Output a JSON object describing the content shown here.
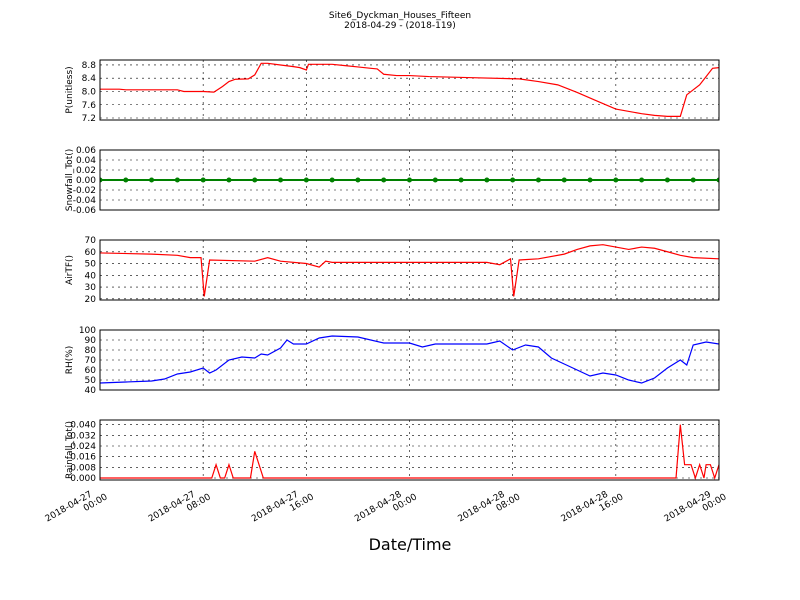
{
  "chart_data": [
    {
      "type": "line",
      "title": "Site6_Dyckman_Houses_Fifteen",
      "subtitle": "2018-04-29 - (2018-119)",
      "ylabel": "P(unitless)",
      "color": "#ff0000",
      "ylim": [
        7.14,
        8.95
      ],
      "yticks": [
        7.2,
        7.6,
        {
          "value": 8,
          "label": "8.0"
        },
        8.4,
        8.8
      ],
      "x": [
        "2018-04-27 00:00",
        "2018-04-27 01:30",
        "2018-04-27 02:00",
        "2018-04-27 06:00",
        "2018-04-27 06:30",
        "2018-04-27 08:00",
        "2018-04-27 08:50",
        "2018-04-27 09:30",
        "2018-04-27 10:00",
        "2018-04-27 10:30",
        "2018-04-27 11:30",
        "2018-04-27 12:00",
        "2018-04-27 12:30",
        "2018-04-27 13:00",
        "2018-04-27 14:00",
        "2018-04-27 15:00",
        "2018-04-27 15:30",
        "2018-04-27 16:00",
        "2018-04-27 16:10",
        "2018-04-27 18:00",
        "2018-04-27 19:00",
        "2018-04-27 20:00",
        "2018-04-27 21:00",
        "2018-04-27 21:30",
        "2018-04-27 22:00",
        "2018-04-27 23:00",
        "2018-04-28 00:00",
        "2018-04-28 01:30",
        "2018-04-28 04:30",
        "2018-04-28 08:30",
        "2018-04-28 10:00",
        "2018-04-28 11:30",
        "2018-04-28 13:00",
        "2018-04-28 14:30",
        "2018-04-28 16:00",
        "2018-04-28 18:00",
        "2018-04-28 19:00",
        "2018-04-28 20:00",
        "2018-04-28 21:00",
        "2018-04-28 21:30",
        "2018-04-28 22:30",
        "2018-04-28 23:00",
        "2018-04-28 23:30",
        "2018-04-29 00:00"
      ],
      "values": [
        8.07,
        8.07,
        8.05,
        8.05,
        8.0,
        8.0,
        7.98,
        8.15,
        8.3,
        8.37,
        8.38,
        8.5,
        8.85,
        8.85,
        8.8,
        8.75,
        8.72,
        8.65,
        8.82,
        8.82,
        8.78,
        8.74,
        8.7,
        8.68,
        8.52,
        8.48,
        8.48,
        8.45,
        8.42,
        8.38,
        8.3,
        8.2,
        7.97,
        7.72,
        7.47,
        7.33,
        7.28,
        7.25,
        7.25,
        7.9,
        8.2,
        8.45,
        8.7,
        8.72
      ]
    },
    {
      "type": "line",
      "ylabel": "Snowfall_Tot()",
      "color": "#008000",
      "marker": "o",
      "ylim": [
        -0.06,
        0.06
      ],
      "yticks": [
        -0.06,
        -0.04,
        -0.02,
        {
          "value": 0,
          "label": "0.00"
        },
        0.02,
        0.04,
        0.06
      ],
      "x": [
        "2018-04-27 00:00",
        "2018-04-27 02:00",
        "2018-04-27 04:00",
        "2018-04-27 06:00",
        "2018-04-27 08:00",
        "2018-04-27 10:00",
        "2018-04-27 12:00",
        "2018-04-27 14:00",
        "2018-04-27 16:00",
        "2018-04-27 18:00",
        "2018-04-27 20:00",
        "2018-04-27 22:00",
        "2018-04-28 00:00",
        "2018-04-28 02:00",
        "2018-04-28 04:00",
        "2018-04-28 06:00",
        "2018-04-28 08:00",
        "2018-04-28 10:00",
        "2018-04-28 12:00",
        "2018-04-28 14:00",
        "2018-04-28 16:00",
        "2018-04-28 18:00",
        "2018-04-28 20:00",
        "2018-04-28 22:00",
        "2018-04-29 00:00"
      ],
      "values": [
        0,
        0,
        0,
        0,
        0,
        0,
        0,
        0,
        0,
        0,
        0,
        0,
        0,
        0,
        0,
        0,
        0,
        0,
        0,
        0,
        0,
        0,
        0,
        0,
        0
      ]
    },
    {
      "type": "line",
      "ylabel": "AirTF()",
      "color": "#ff0000",
      "ylim": [
        19,
        70
      ],
      "yticks": [
        20,
        30,
        40,
        50,
        60,
        70
      ],
      "x": [
        "2018-04-27 00:00",
        "2018-04-27 04:00",
        "2018-04-27 06:00",
        "2018-04-27 07:00",
        "2018-04-27 07:50",
        "2018-04-27 08:05",
        "2018-04-27 08:30",
        "2018-04-27 12:00",
        "2018-04-27 13:00",
        "2018-04-27 14:00",
        "2018-04-27 16:00",
        "2018-04-27 17:00",
        "2018-04-27 17:30",
        "2018-04-27 18:00",
        "2018-04-28 06:00",
        "2018-04-28 07:00",
        "2018-04-28 07:50",
        "2018-04-28 08:05",
        "2018-04-28 08:30",
        "2018-04-28 10:00",
        "2018-04-28 12:00",
        "2018-04-28 13:00",
        "2018-04-28 14:00",
        "2018-04-28 15:00",
        "2018-04-28 16:00",
        "2018-04-28 17:00",
        "2018-04-28 18:00",
        "2018-04-28 19:00",
        "2018-04-28 20:00",
        "2018-04-28 21:00",
        "2018-04-28 22:00",
        "2018-04-29 00:00"
      ],
      "values": [
        59,
        58,
        57,
        55,
        55,
        22,
        53,
        52,
        55,
        52,
        50,
        47,
        52,
        51,
        51,
        49,
        54,
        22,
        53,
        54,
        58,
        62,
        65,
        66,
        64,
        62,
        64,
        63,
        60,
        57,
        55,
        54
      ]
    },
    {
      "type": "line",
      "ylabel": "RH(%)",
      "color": "#0000ff",
      "ylim": [
        40,
        100
      ],
      "yticks": [
        40,
        50,
        60,
        70,
        80,
        90,
        100
      ],
      "x": [
        "2018-04-27 00:00",
        "2018-04-27 02:00",
        "2018-04-27 04:00",
        "2018-04-27 05:00",
        "2018-04-27 06:00",
        "2018-04-27 07:00",
        "2018-04-27 08:00",
        "2018-04-27 08:30",
        "2018-04-27 09:00",
        "2018-04-27 10:00",
        "2018-04-27 11:00",
        "2018-04-27 12:00",
        "2018-04-27 12:30",
        "2018-04-27 13:00",
        "2018-04-27 14:00",
        "2018-04-27 14:30",
        "2018-04-27 15:00",
        "2018-04-27 16:00",
        "2018-04-27 17:00",
        "2018-04-27 18:00",
        "2018-04-27 20:00",
        "2018-04-27 22:00",
        "2018-04-28 00:00",
        "2018-04-28 01:00",
        "2018-04-28 02:00",
        "2018-04-28 04:00",
        "2018-04-28 06:00",
        "2018-04-28 07:00",
        "2018-04-28 08:00",
        "2018-04-28 09:00",
        "2018-04-28 10:00",
        "2018-04-28 11:00",
        "2018-04-28 12:00",
        "2018-04-28 13:00",
        "2018-04-28 14:00",
        "2018-04-28 15:00",
        "2018-04-28 16:00",
        "2018-04-28 17:00",
        "2018-04-28 18:00",
        "2018-04-28 19:00",
        "2018-04-28 20:00",
        "2018-04-28 21:00",
        "2018-04-28 21:30",
        "2018-04-28 22:00",
        "2018-04-28 23:00",
        "2018-04-29 00:00"
      ],
      "values": [
        47,
        48,
        49,
        51,
        56,
        58,
        62,
        57,
        60,
        70,
        73,
        72,
        76,
        75,
        82,
        90,
        86,
        86,
        92,
        94,
        93,
        87,
        87,
        83,
        86,
        86,
        86,
        89,
        80,
        85,
        83,
        72,
        66,
        60,
        54,
        57,
        55,
        50,
        47,
        52,
        62,
        70,
        65,
        85,
        88,
        86
      ]
    },
    {
      "type": "line",
      "ylabel": "Rainfall_Tot()",
      "xlabel": "Date/Time",
      "color": "#ff0000",
      "ylim": [
        -0.0015,
        0.0435
      ],
      "yticks": [
        {
          "value": 0,
          "label": "0.000"
        },
        0.008,
        0.016,
        0.024,
        0.032,
        {
          "value": 0.04,
          "label": "0.040"
        }
      ],
      "xlim": [
        "2018-04-27 00:00",
        "2018-04-29 00:00"
      ],
      "xticks": [
        {
          "value": "2018-04-27 00:00",
          "label": "2018-04-27\n00:00"
        },
        {
          "value": "2018-04-27 08:00",
          "label": "2018-04-27\n08:00"
        },
        {
          "value": "2018-04-27 16:00",
          "label": "2018-04-27\n16:00"
        },
        {
          "value": "2018-04-28 00:00",
          "label": "2018-04-28\n00:00"
        },
        {
          "value": "2018-04-28 08:00",
          "label": "2018-04-28\n08:00"
        },
        {
          "value": "2018-04-28 16:00",
          "label": "2018-04-28\n16:00"
        },
        {
          "value": "2018-04-29 00:00",
          "label": "2018-04-29\n00:00"
        }
      ],
      "x": [
        "2018-04-27 00:00",
        "2018-04-27 08:40",
        "2018-04-27 09:00",
        "2018-04-27 09:20",
        "2018-04-27 09:40",
        "2018-04-27 10:00",
        "2018-04-27 10:20",
        "2018-04-27 11:40",
        "2018-04-27 12:00",
        "2018-04-27 12:40",
        "2018-04-28 20:40",
        "2018-04-28 21:00",
        "2018-04-28 21:20",
        "2018-04-28 21:50",
        "2018-04-28 22:10",
        "2018-04-28 22:30",
        "2018-04-28 22:50",
        "2018-04-28 23:00",
        "2018-04-28 23:20",
        "2018-04-28 23:40",
        "2018-04-29 00:00"
      ],
      "values": [
        0,
        0,
        0.01,
        0,
        0,
        0.01,
        0,
        0,
        0.02,
        0,
        0,
        0.04,
        0.01,
        0.01,
        0,
        0.01,
        0,
        0.01,
        0.01,
        0,
        0.01
      ]
    }
  ]
}
